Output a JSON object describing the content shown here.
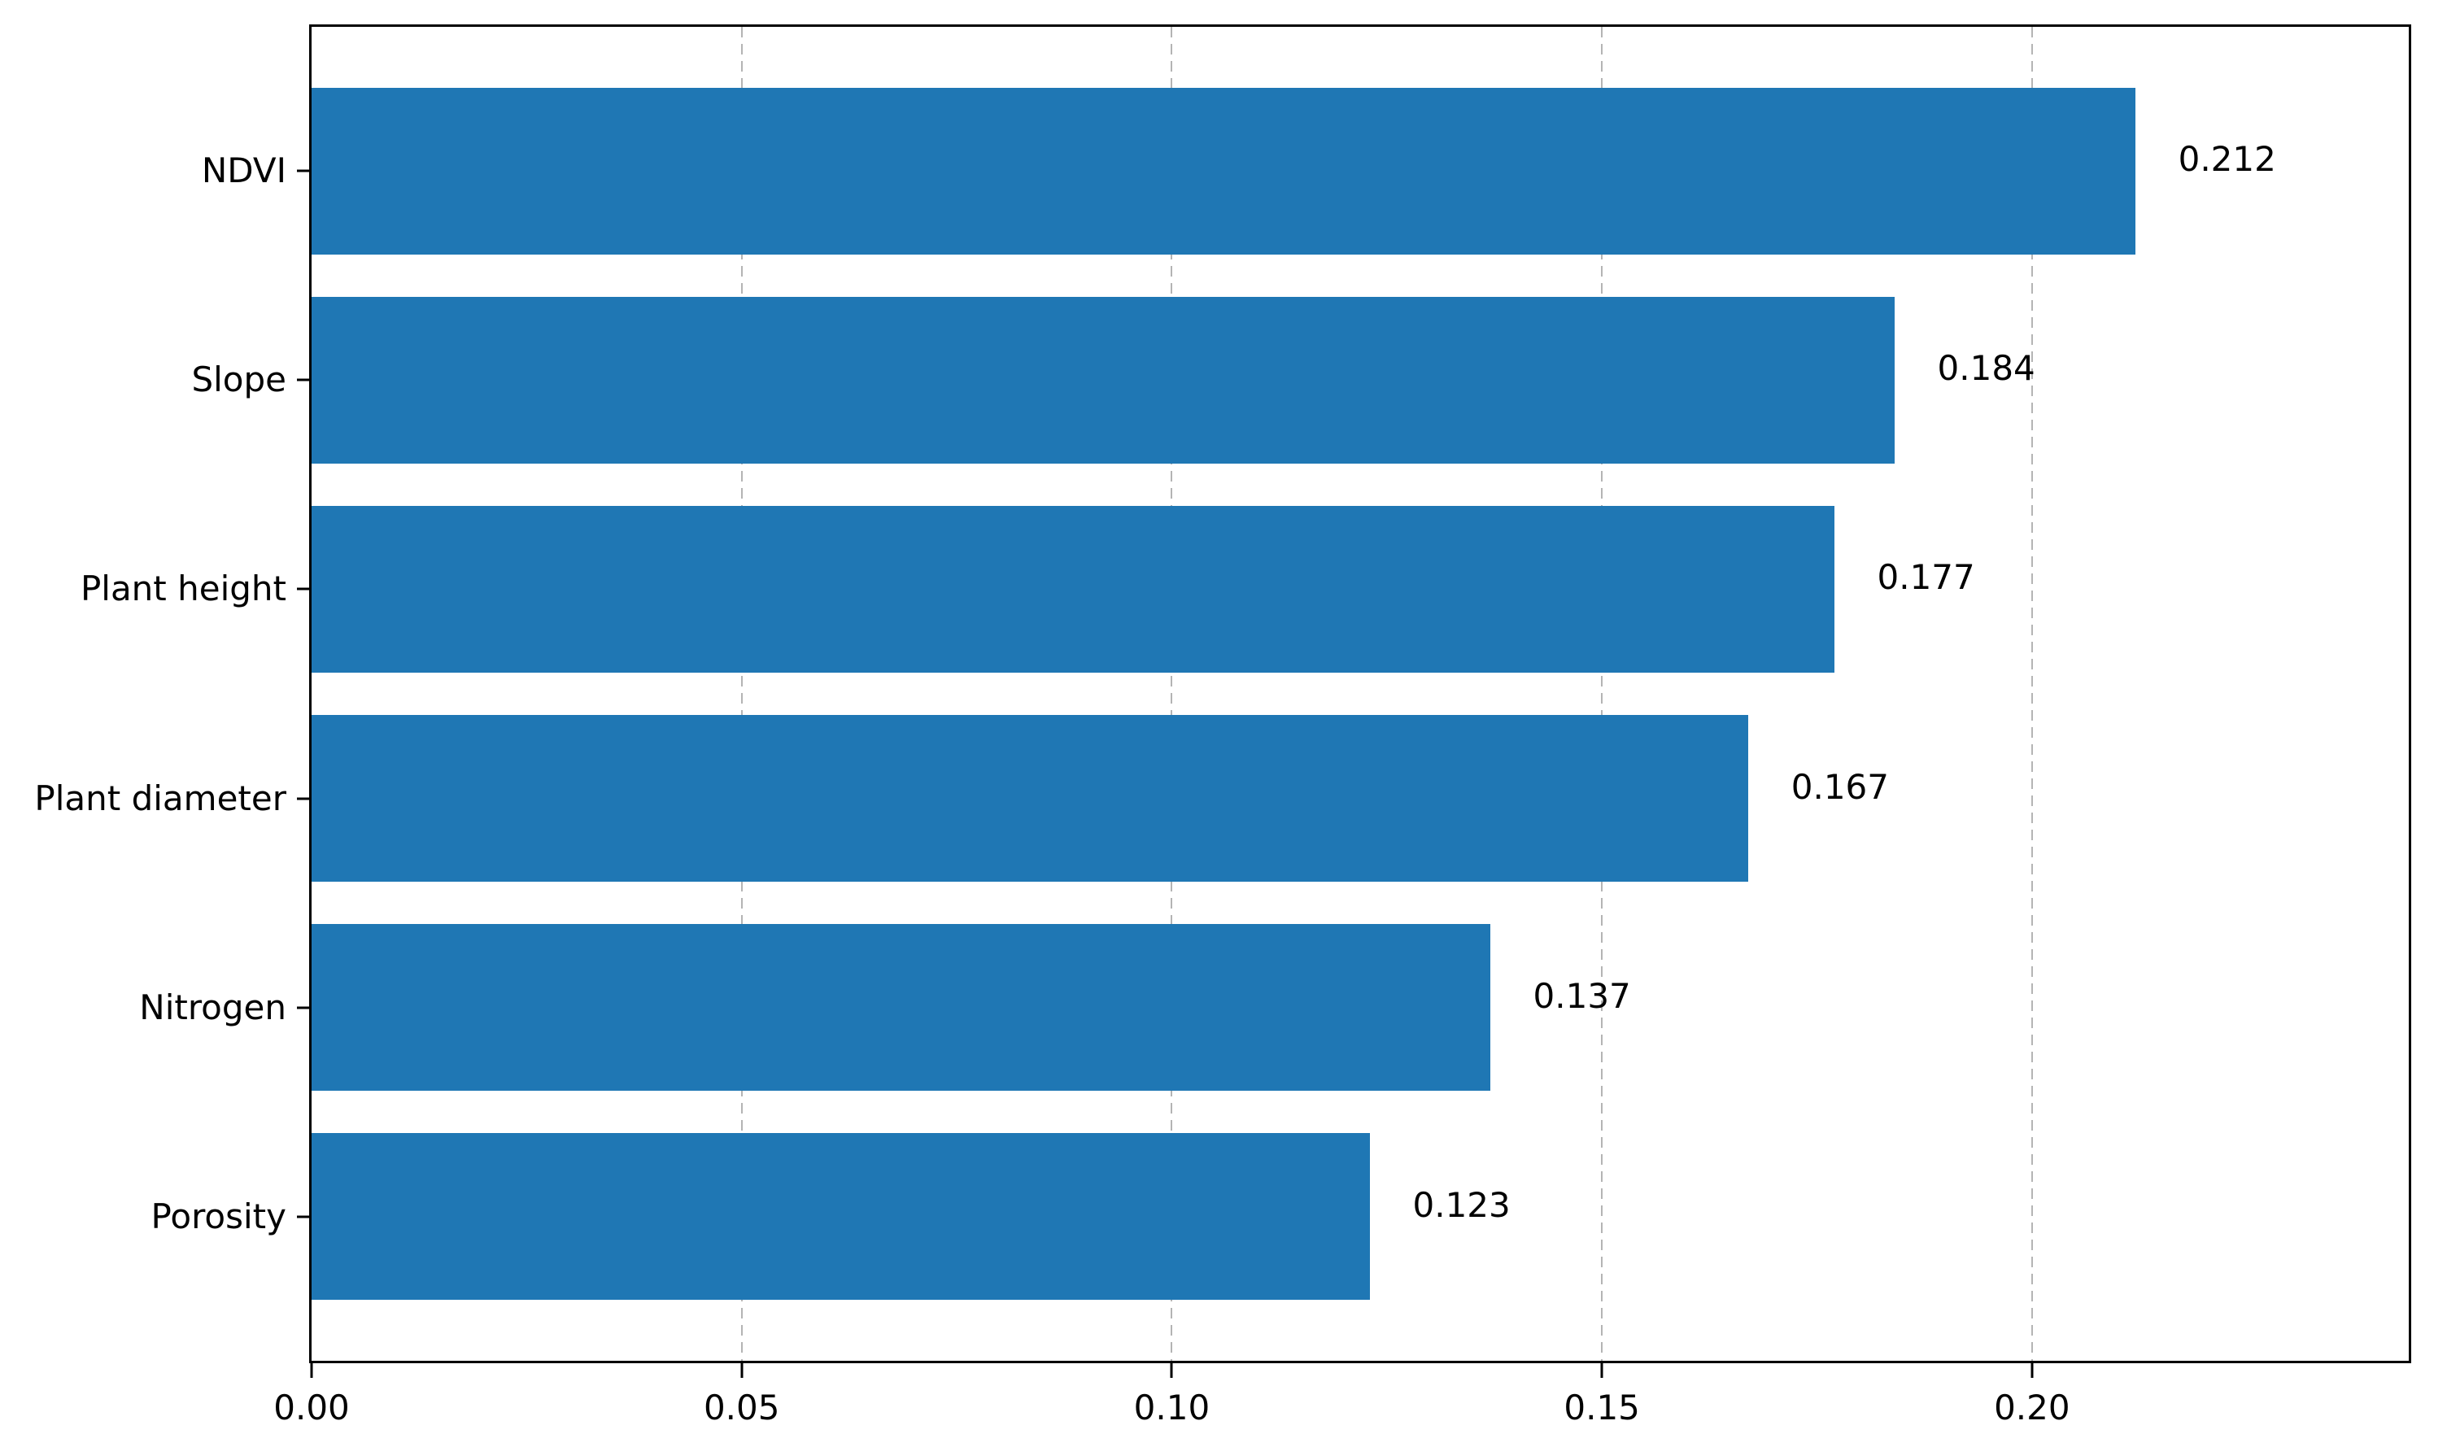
{
  "figure": {
    "background_color": "#ffffff"
  },
  "chart_data": {
    "type": "bar",
    "orientation": "horizontal",
    "title": "",
    "xlabel": "",
    "ylabel": "",
    "categories": [
      "NDVI",
      "Slope",
      "Plant height",
      "Plant diameter",
      "Nitrogen",
      "Porosity"
    ],
    "values": [
      0.212,
      0.184,
      0.177,
      0.167,
      0.137,
      0.123
    ],
    "value_labels": [
      "0.212",
      "0.184",
      "0.177",
      "0.167",
      "0.137",
      "0.123"
    ],
    "xlim": [
      0,
      0.2438
    ],
    "ylim": [
      -0.69,
      5.69
    ],
    "x_ticks": [
      0.0,
      0.05,
      0.1,
      0.15,
      0.2
    ],
    "x_tick_labels": [
      "0.00",
      "0.05",
      "0.10",
      "0.15",
      "0.20"
    ],
    "bar_height_frac": 0.8,
    "value_label_offset_x": 0.005,
    "grid": {
      "axis": "x",
      "style": "dashed",
      "color": "#b4b4b4",
      "behind_bars": true
    },
    "legend": null,
    "colors": {
      "bar": "#1f77b4",
      "grid": "#b4b4b4",
      "spine": "#000000",
      "text": "#000000",
      "background": "#ffffff"
    }
  }
}
